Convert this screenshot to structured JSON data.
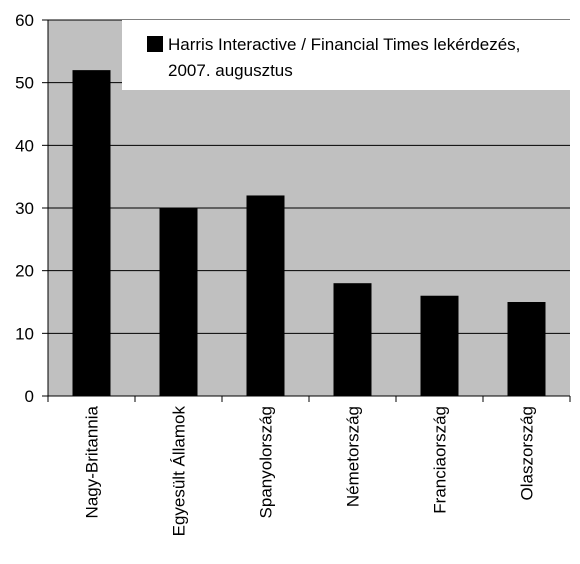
{
  "chart_data": {
    "type": "bar",
    "categories": [
      "Nagy-Britannia",
      "Egyesült Államok",
      "Spanyolország",
      "Németország",
      "Franciaország",
      "Olaszország"
    ],
    "series": [
      {
        "name": "Harris Interactive / Financial Times lekérdezés, 2007. augusztus",
        "values": [
          52,
          30,
          32,
          18,
          16,
          15
        ]
      }
    ],
    "legend_lines": [
      "Harris Interactive / Financial Times lekérdezés,",
      "2007. augusztus"
    ],
    "yticks": [
      0,
      10,
      20,
      30,
      40,
      50,
      60
    ],
    "ylim": [
      0,
      60
    ],
    "grid": true,
    "legend_position": "top-right",
    "colors": {
      "plot_background": "#c0c0c0",
      "bar": "#000000",
      "gridline": "#000000",
      "legend_background": "#ffffff"
    }
  }
}
